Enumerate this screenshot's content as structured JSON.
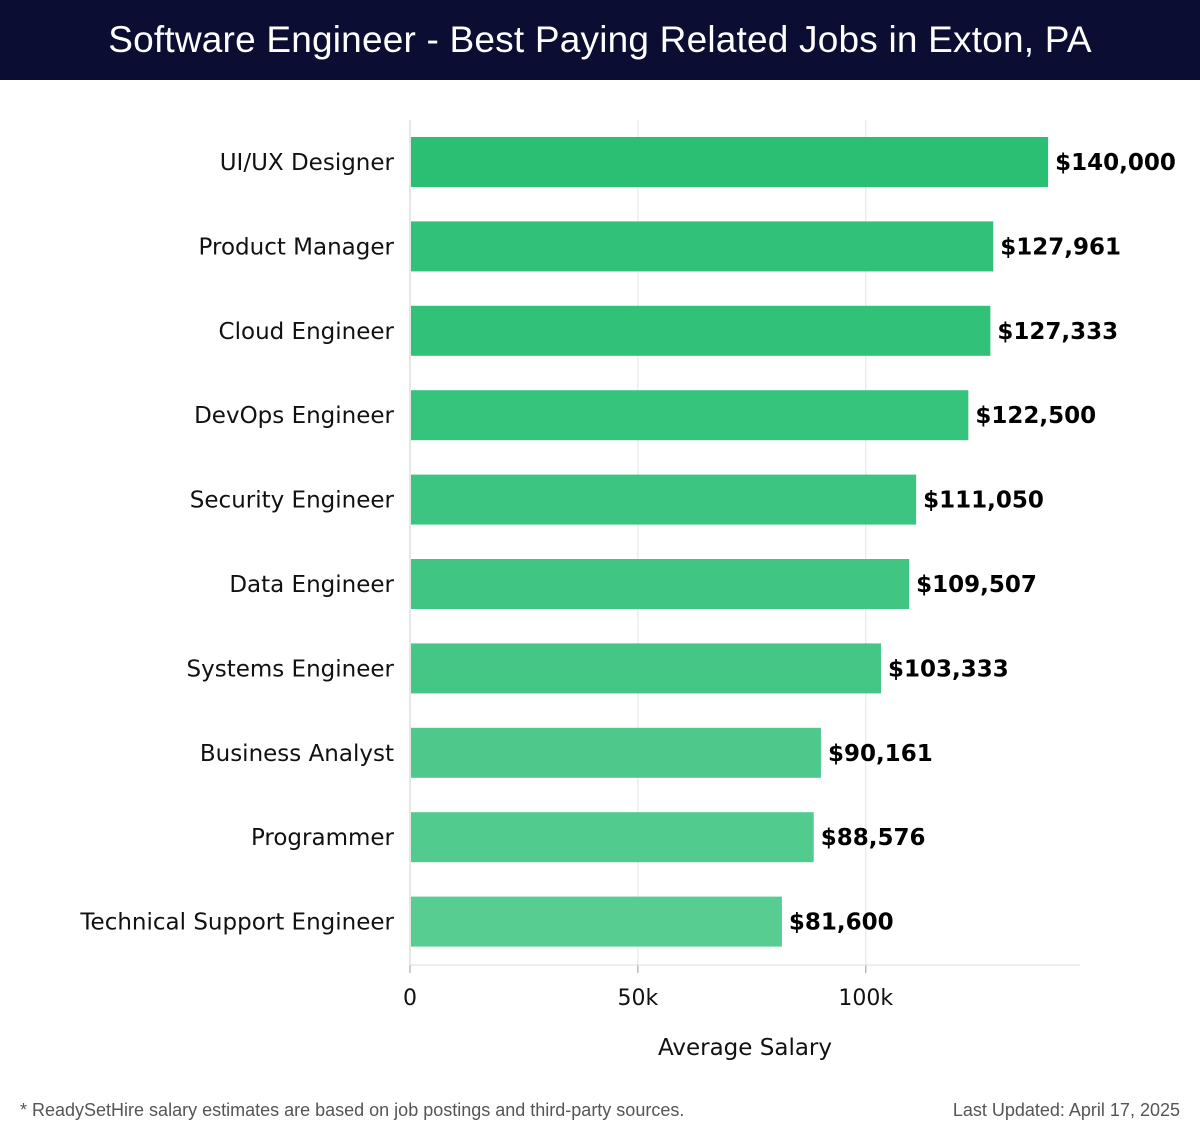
{
  "header": {
    "title": "Software Engineer - Best Paying Related Jobs in Exton, PA"
  },
  "chart_data": {
    "type": "bar",
    "orientation": "horizontal",
    "title": "Software Engineer - Best Paying Related Jobs in Exton, PA",
    "xlabel": "Average Salary",
    "ylabel": "",
    "xlim": [
      0,
      147000
    ],
    "x_ticks": [
      {
        "value": 0,
        "label": "0"
      },
      {
        "value": 50000,
        "label": "50k"
      },
      {
        "value": 100000,
        "label": "100k"
      }
    ],
    "grid": "vertical",
    "categories": [
      "UI/UX Designer",
      "Product Manager",
      "Cloud Engineer",
      "DevOps Engineer",
      "Security Engineer",
      "Data Engineer",
      "Systems Engineer",
      "Business Analyst",
      "Programmer",
      "Technical Support Engineer"
    ],
    "values": [
      140000,
      127961,
      127333,
      122500,
      111050,
      109507,
      103333,
      90161,
      88576,
      81600
    ],
    "value_labels": [
      "$140,000",
      "$127,961",
      "$127,333",
      "$122,500",
      "$111,050",
      "$109,507",
      "$103,333",
      "$90,161",
      "$88,576",
      "$81,600"
    ],
    "colors": [
      "#2bbf74",
      "#31c178",
      "#32c179",
      "#36c37b",
      "#3cc580",
      "#40c682",
      "#44c785",
      "#4ec98b",
      "#52cb8e",
      "#58cd92"
    ]
  },
  "footer": {
    "note": "* ReadySetHire salary estimates are based on job postings and third-party sources.",
    "updated": "Last Updated: April 17, 2025"
  }
}
